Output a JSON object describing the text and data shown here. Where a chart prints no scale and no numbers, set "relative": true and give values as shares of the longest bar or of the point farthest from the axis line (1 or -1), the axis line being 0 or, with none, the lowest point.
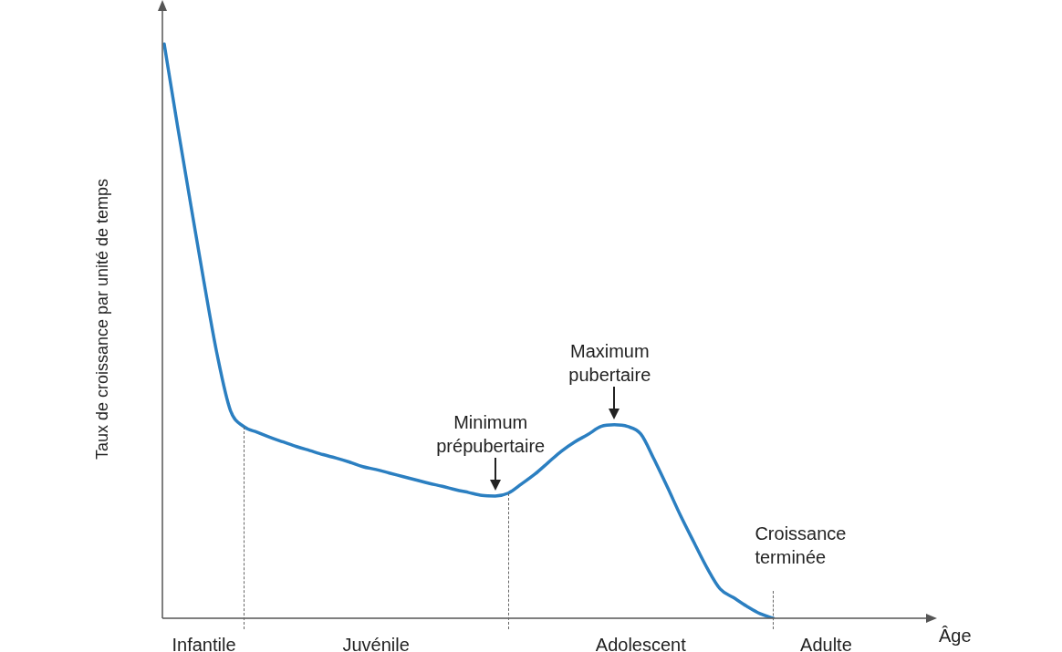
{
  "chart_data": {
    "type": "line",
    "relative": true,
    "ylabel": "Taux de croissance par unité de temps",
    "xlabel": "Âge",
    "categories": [
      null,
      null,
      null,
      "Infantile",
      null,
      null,
      null,
      null,
      null,
      null,
      null,
      null,
      null,
      null,
      null,
      null,
      "Juvénile",
      null,
      null,
      null,
      null,
      null,
      null,
      null,
      null,
      null,
      null,
      null,
      null,
      null,
      null,
      null,
      null,
      null,
      null,
      null,
      "Adolescent",
      null,
      null,
      null,
      null,
      null,
      null,
      null,
      null,
      null,
      null,
      null,
      null,
      null,
      "Adulte",
      null,
      null,
      null,
      null,
      null,
      null,
      null
    ],
    "series": [
      {
        "color": "#2b7fc1",
        "values": [
          1.0,
          0.858,
          0.721,
          0.586,
          0.459,
          0.362,
          0.334,
          0.324,
          0.315,
          0.307,
          0.299,
          0.292,
          0.285,
          0.279,
          0.272,
          0.264,
          0.259,
          0.253,
          0.247,
          0.241,
          0.235,
          0.23,
          0.224,
          0.219,
          0.214,
          0.213,
          0.218,
          0.234,
          0.251,
          0.271,
          0.291,
          0.307,
          0.32,
          0.334,
          0.337,
          0.334,
          0.321,
          0.277,
          0.229,
          0.179,
          0.133,
          0.088,
          0.051,
          0.036,
          0.021,
          0.008,
          0,
          null,
          null,
          null,
          null,
          null,
          null,
          null,
          null,
          null,
          null,
          null
        ]
      }
    ],
    "annotations": [
      "Minimum\nprépubertaire",
      "Maximum\npubertaire",
      "Croissance\nterminée"
    ],
    "legend": false,
    "marker": "none",
    "line_style": "solid"
  }
}
